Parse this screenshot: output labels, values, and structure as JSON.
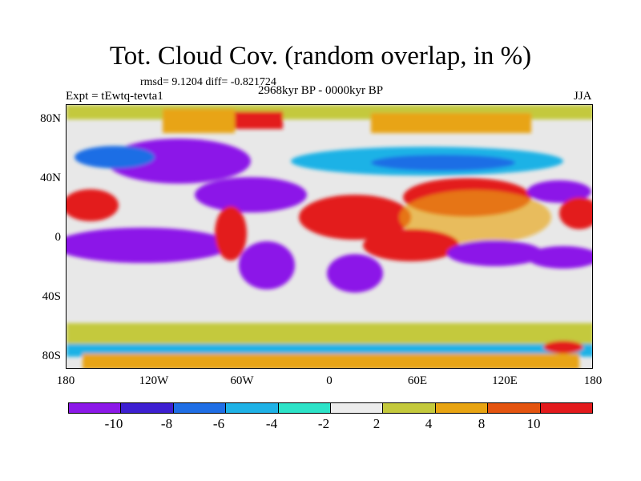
{
  "title": "Tot. Cloud Cov. (random overlap, in %)",
  "stats_line": "rmsd= 9.1204 diff= -0.821724",
  "experiment_label": "Expt = tEwtq-tevta1",
  "period_label": "2968kyr BP - 0000kyr BP",
  "season_label": "JJA",
  "lat_labels": [
    "80N",
    "40N",
    "0",
    "40S",
    "80S"
  ],
  "lon_labels": [
    "180",
    "120W",
    "60W",
    "0",
    "60E",
    "120E",
    "180"
  ],
  "colorbar": {
    "labels": [
      "-10",
      "-8",
      "-6",
      "-4",
      "-2",
      "2",
      "4",
      "8",
      "10"
    ],
    "colors": [
      "#8c18e8",
      "#3d1fd1",
      "#1f6ee5",
      "#1fb2e6",
      "#2de3c8",
      "#ececec",
      "#c4c93c",
      "#e8a412",
      "#e4540f",
      "#e31a1c"
    ]
  },
  "colors": {
    "ocean_neutral": "#e8e8e8",
    "strong_negative": "#8c18e8",
    "strong_positive": "#e31a1c"
  }
}
